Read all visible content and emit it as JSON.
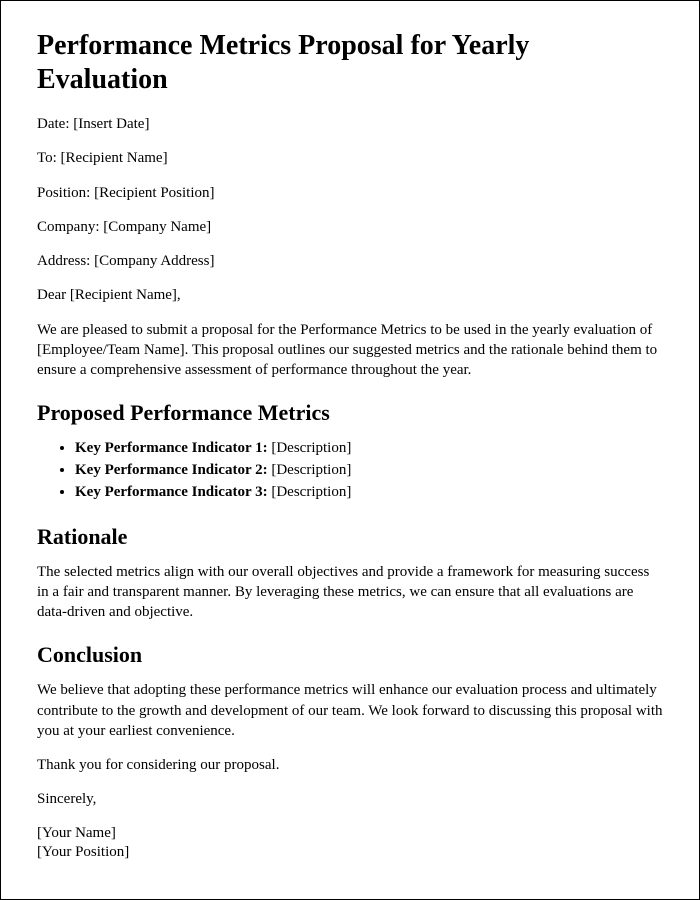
{
  "title": "Performance Metrics Proposal for Yearly Evaluation",
  "fields": {
    "date_label": "Date:",
    "date_value": "[Insert Date]",
    "to_label": "To:",
    "to_value": "[Recipient Name]",
    "position_label": "Position:",
    "position_value": "[Recipient Position]",
    "company_label": "Company:",
    "company_value": "[Company Name]",
    "address_label": "Address:",
    "address_value": "[Company Address]"
  },
  "salutation": "Dear [Recipient Name],",
  "intro": "We are pleased to submit a proposal for the Performance Metrics to be used in the yearly evaluation of [Employee/Team Name]. This proposal outlines our suggested metrics and the rationale behind them to ensure a comprehensive assessment of performance throughout the year.",
  "sections": {
    "metrics_heading": "Proposed Performance Metrics",
    "kpis": [
      {
        "label": "Key Performance Indicator 1:",
        "desc": "[Description]"
      },
      {
        "label": "Key Performance Indicator 2:",
        "desc": "[Description]"
      },
      {
        "label": "Key Performance Indicator 3:",
        "desc": "[Description]"
      }
    ],
    "rationale_heading": "Rationale",
    "rationale_body": "The selected metrics align with our overall objectives and provide a framework for measuring success in a fair and transparent manner. By leveraging these metrics, we can ensure that all evaluations are data-driven and objective.",
    "conclusion_heading": "Conclusion",
    "conclusion_body": "We believe that adopting these performance metrics will enhance our evaluation process and ultimately contribute to the growth and development of our team. We look forward to discussing this proposal with you at your earliest convenience.",
    "thanks": "Thank you for considering our proposal.",
    "closing": "Sincerely,",
    "sig_name": "[Your Name]",
    "sig_position": "[Your Position]"
  }
}
